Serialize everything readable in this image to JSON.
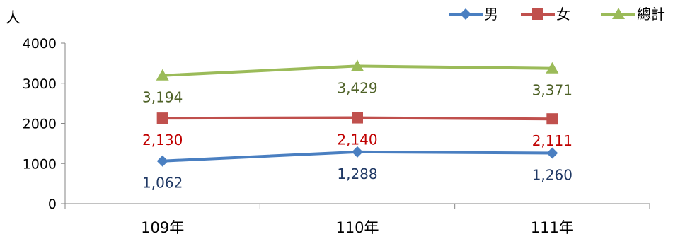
{
  "chart_data": {
    "type": "line",
    "categories": [
      "109年",
      "110年",
      "111年"
    ],
    "ylabel": "人",
    "ylim": [
      0,
      4000
    ],
    "yticks": [
      0,
      1000,
      2000,
      3000,
      4000
    ],
    "grid": false,
    "legend_position": "top-right",
    "series": [
      {
        "name": "男",
        "values": [
          1062,
          1288,
          1260
        ],
        "labels": [
          "1,062",
          "1,288",
          "1,260"
        ],
        "color": "#4a7fc1",
        "label_color": "#1f3864",
        "marker": "diamond"
      },
      {
        "name": "女",
        "values": [
          2130,
          2140,
          2111
        ],
        "labels": [
          "2,130",
          "2,140",
          "2,111"
        ],
        "color": "#c0504d",
        "label_color": "#c00000",
        "marker": "square"
      },
      {
        "name": "總計",
        "values": [
          3194,
          3429,
          3371
        ],
        "labels": [
          "3,194",
          "3,429",
          "3,371"
        ],
        "color": "#9bbb59",
        "label_color": "#4f6228",
        "marker": "triangle"
      }
    ]
  }
}
